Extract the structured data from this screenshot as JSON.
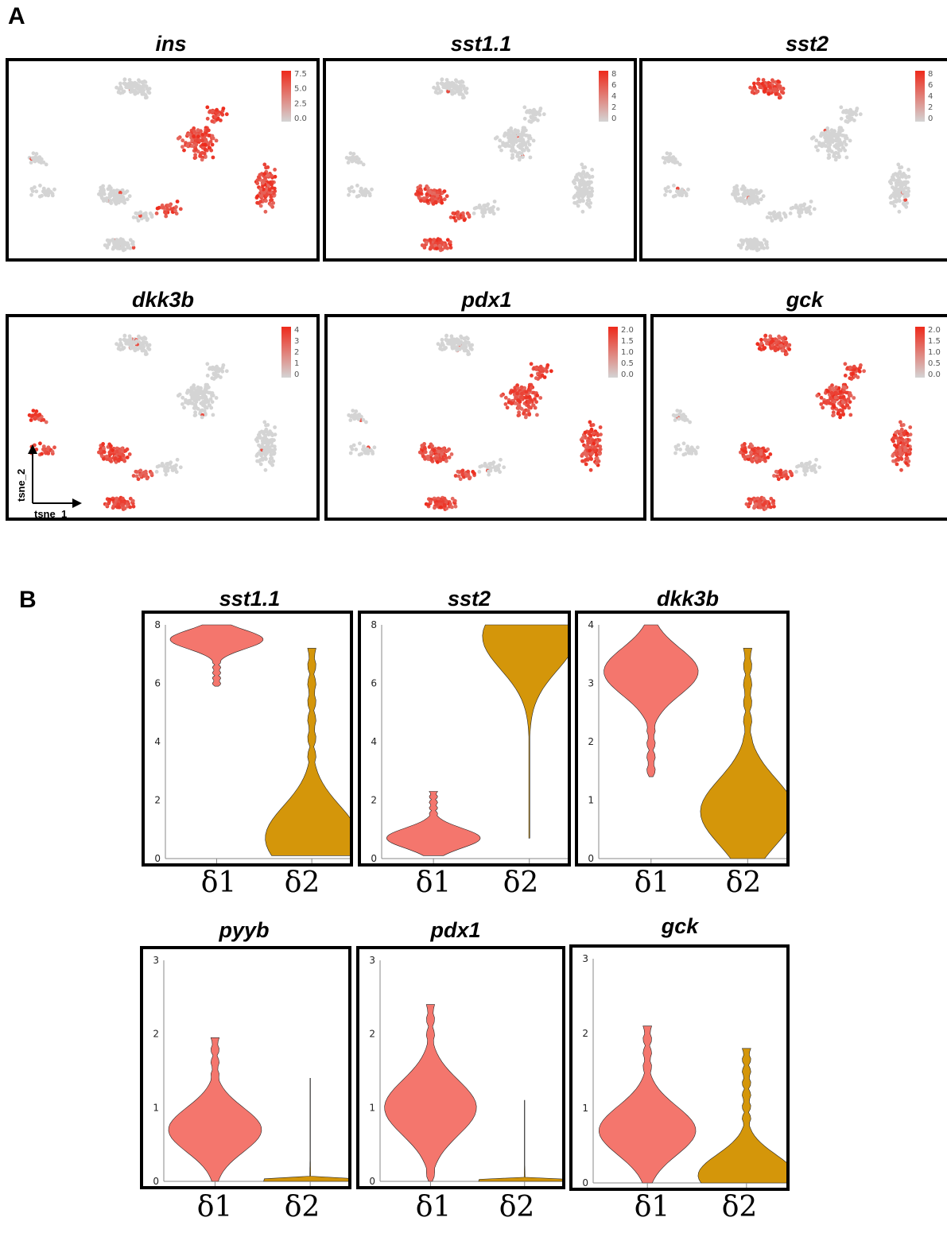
{
  "panel_a": {
    "letter": "A",
    "axis_x_label": "tsne_1",
    "axis_y_label": "tsne_2"
  },
  "panel_b": {
    "letter": "B"
  },
  "colors": {
    "low": "#d4d4d4",
    "high": "#ee2a1b",
    "delta1": "#f4766d",
    "delta2": "#d4960a"
  },
  "chart_data": [
    {
      "type": "scatter",
      "title": "ins",
      "legend_ticks": [
        "7.5",
        "5.0",
        "2.5",
        "0.0"
      ],
      "range": [
        0,
        7.5
      ],
      "high_clusters": [
        "beta-upper",
        "beta-right",
        "bridge"
      ]
    },
    {
      "type": "scatter",
      "title": "sst1.1",
      "legend_ticks": [
        "8",
        "6",
        "4",
        "2",
        "0"
      ],
      "range": [
        0,
        8
      ],
      "high_clusters": [
        "delta1",
        "delta1-bottom"
      ]
    },
    {
      "type": "scatter",
      "title": "sst2",
      "legend_ticks": [
        "8",
        "6",
        "4",
        "2",
        "0"
      ],
      "range": [
        0,
        8
      ],
      "high_clusters": [
        "delta2-top"
      ]
    },
    {
      "type": "scatter",
      "title": "dkk3b",
      "legend_ticks": [
        "4",
        "3",
        "2",
        "1",
        "0"
      ],
      "range": [
        0,
        4
      ],
      "high_clusters": [
        "delta1",
        "delta1-bottom",
        "left-arm"
      ]
    },
    {
      "type": "scatter",
      "title": "pdx1",
      "legend_ticks": [
        "2.0",
        "1.5",
        "1.0",
        "0.5",
        "0.0"
      ],
      "range": [
        0,
        2
      ],
      "high_clusters": [
        "beta-upper",
        "beta-right",
        "delta1",
        "delta1-bottom"
      ]
    },
    {
      "type": "scatter",
      "title": "gck",
      "legend_ticks": [
        "2.0",
        "1.5",
        "1.0",
        "0.5",
        "0.0"
      ],
      "range": [
        0,
        2
      ],
      "high_clusters": [
        "beta-upper",
        "beta-right",
        "delta1",
        "delta1-bottom",
        "delta2-top"
      ]
    },
    {
      "type": "violin",
      "title": "sst1.1",
      "ylim": [
        0,
        8
      ],
      "yticks": [
        "0",
        "2",
        "4",
        "6",
        "8"
      ],
      "categories": [
        "δ1",
        "δ2"
      ],
      "series": [
        {
          "range": [
            5.9,
            8.0
          ],
          "mode": 7.5
        },
        {
          "range": [
            0.1,
            7.2
          ],
          "mode": 0.7
        }
      ]
    },
    {
      "type": "violin",
      "title": "sst2",
      "ylim": [
        0,
        8
      ],
      "yticks": [
        "0",
        "2",
        "4",
        "6",
        "8"
      ],
      "categories": [
        "δ1",
        "δ2"
      ],
      "series": [
        {
          "range": [
            0.1,
            2.3
          ],
          "mode": 0.7
        },
        {
          "range": [
            0.7,
            8.0
          ],
          "mode": 7.6
        }
      ]
    },
    {
      "type": "violin",
      "title": "dkk3b",
      "ylim": [
        0,
        4
      ],
      "yticks": [
        "0",
        "1",
        "2",
        "3",
        "4"
      ],
      "categories": [
        "δ1",
        "δ2"
      ],
      "series": [
        {
          "range": [
            1.4,
            4.0
          ],
          "mode": 3.2
        },
        {
          "range": [
            0.0,
            3.6
          ],
          "mode": 0.8
        }
      ]
    },
    {
      "type": "violin",
      "title": "pyyb",
      "ylim": [
        0,
        3
      ],
      "yticks": [
        "0",
        "1",
        "2",
        "3"
      ],
      "categories": [
        "δ1",
        "δ2"
      ],
      "series": [
        {
          "range": [
            0.0,
            1.95
          ],
          "mode": 0.7
        },
        {
          "range": [
            0.0,
            1.4
          ],
          "mode": 0.0
        }
      ]
    },
    {
      "type": "violin",
      "title": "pdx1",
      "ylim": [
        0,
        3
      ],
      "yticks": [
        "0",
        "1",
        "2",
        "3"
      ],
      "categories": [
        "δ1",
        "δ2"
      ],
      "series": [
        {
          "range": [
            0.0,
            2.4
          ],
          "mode": 1.0
        },
        {
          "range": [
            0.0,
            1.1
          ],
          "mode": 0.0
        }
      ]
    },
    {
      "type": "violin",
      "title": "gck",
      "ylim": [
        0,
        3
      ],
      "yticks": [
        "0",
        "1",
        "2",
        "3"
      ],
      "categories": [
        "δ1",
        "δ2"
      ],
      "series": [
        {
          "range": [
            0.0,
            2.1
          ],
          "mode": 0.7
        },
        {
          "range": [
            0.0,
            1.8
          ],
          "mode": 0.1
        }
      ]
    }
  ]
}
